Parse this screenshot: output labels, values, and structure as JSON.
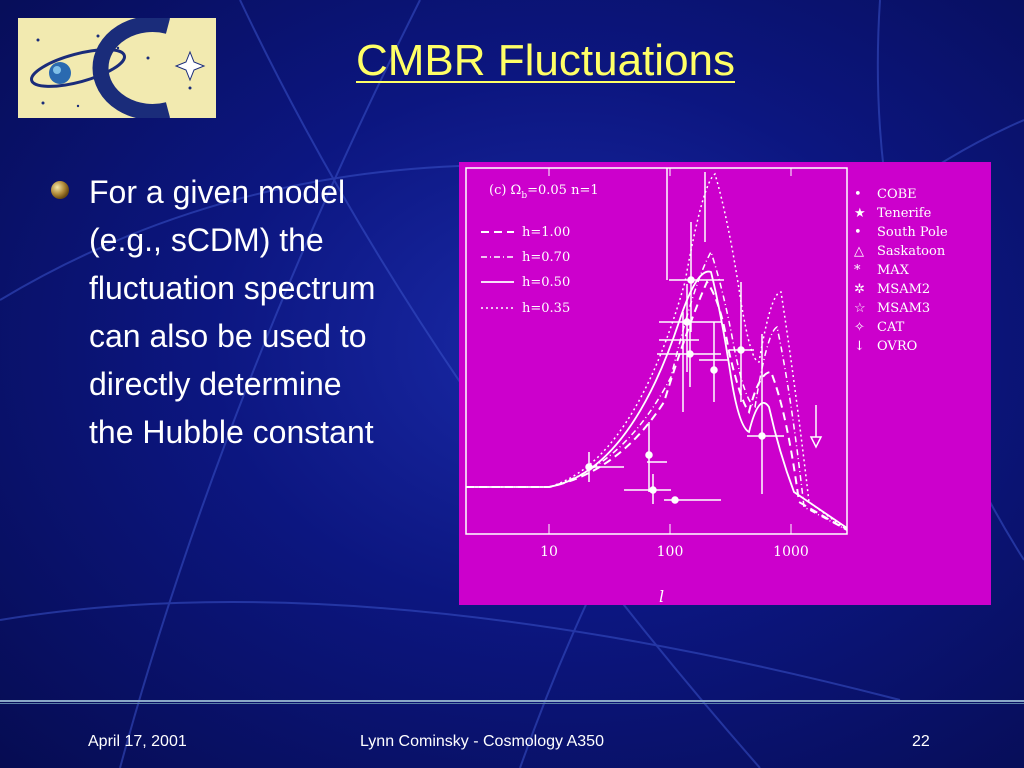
{
  "slide": {
    "title": "CMBR Fluctuations",
    "bullet": "For a given model (e.g., sCDM) the fluctuation spectrum can also be used to directly determine the Hubble constant"
  },
  "figure": {
    "panel_label": "(c) Ω",
    "panel_sub": "b",
    "panel_rest": "=0.05 n=1",
    "model_legend": [
      "h=1.00",
      "h=0.70",
      "h=0.50",
      "h=0.35"
    ],
    "data_legend": [
      "COBE",
      "Tenerife",
      "South Pole",
      "Saskatoon",
      "MAX",
      "MSAM2",
      "MSAM3",
      "CAT",
      "OVRO"
    ],
    "tick_labels": [
      "10",
      "100",
      "1000"
    ],
    "xlabel": "l"
  },
  "footer": {
    "date": "April 17, 2001",
    "center": "Lynn Cominsky - Cosmology A350",
    "page": "22"
  },
  "colors": {
    "title": "#ffff66",
    "plot_bg": "#cc00cc",
    "background": "#0c1680"
  }
}
